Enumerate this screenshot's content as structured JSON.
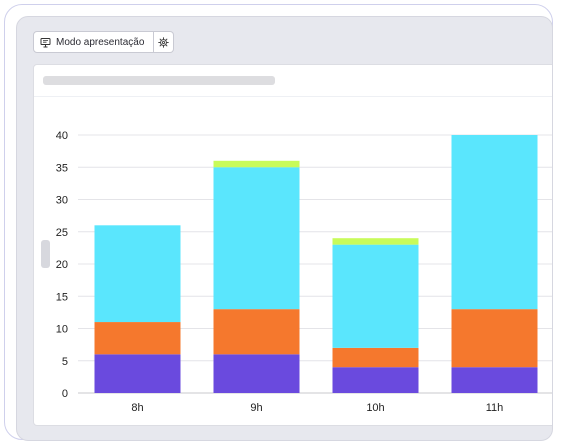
{
  "toolbar": {
    "present_label": "Modo apresentação",
    "present_icon": "presentation-icon",
    "settings_icon": "gear-icon"
  },
  "chart_data": {
    "type": "bar",
    "stacked": true,
    "categories": [
      "8h",
      "9h",
      "10h",
      "11h"
    ],
    "series": [
      {
        "color": "#6a4ade",
        "values": [
          6,
          6,
          4,
          4
        ]
      },
      {
        "color": "#f5782d",
        "values": [
          5,
          7,
          3,
          9
        ]
      },
      {
        "color": "#5ae6fd",
        "values": [
          15,
          22,
          16,
          27
        ]
      },
      {
        "color": "#c8fb5a",
        "values": [
          0,
          1,
          1,
          0
        ]
      }
    ],
    "ylim": [
      0,
      40
    ],
    "yticks": [
      0,
      5,
      10,
      15,
      20,
      25,
      30,
      35,
      40
    ],
    "grid": true,
    "title": "",
    "xlabel": "",
    "ylabel": ""
  }
}
